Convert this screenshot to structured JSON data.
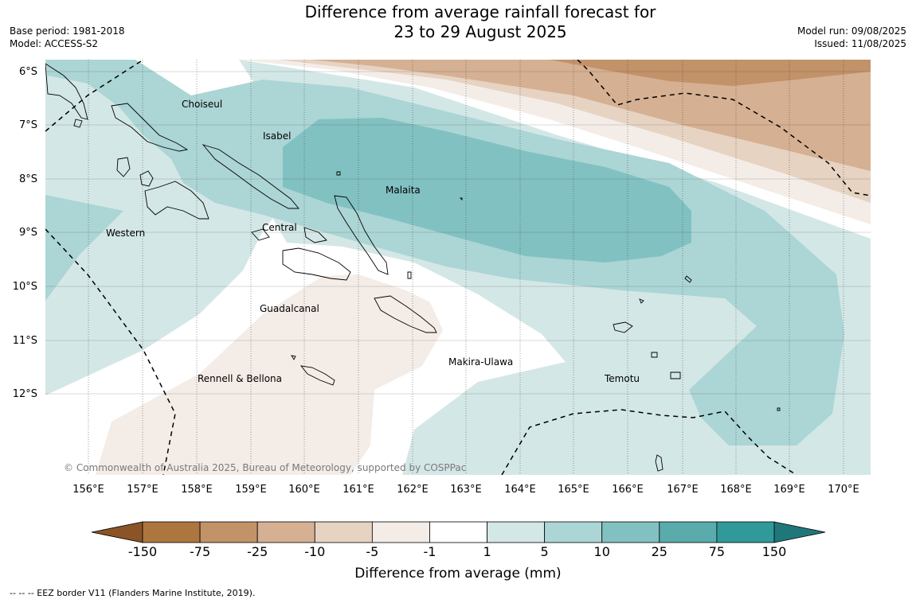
{
  "header": {
    "title_line1": "Difference from average rainfall forecast for",
    "title_line2": "23 to 29 August 2025",
    "base_period": "Base period: 1981-2018",
    "model": "Model: ACCESS-S2",
    "model_run": "Model run: 09/08/2025",
    "issued": "Issued: 11/08/2025"
  },
  "map": {
    "lat_labels": [
      "6°S",
      "7°S",
      "8°S",
      "9°S",
      "10°S",
      "11°S",
      "12°S"
    ],
    "lon_labels": [
      "156°E",
      "157°E",
      "158°E",
      "159°E",
      "160°E",
      "161°E",
      "162°E",
      "163°E",
      "164°E",
      "165°E",
      "166°E",
      "167°E",
      "168°E",
      "169°E",
      "170°E"
    ],
    "regions": {
      "choiseul": "Choiseul",
      "isabel": "Isabel",
      "malaita": "Malaita",
      "central": "Central",
      "western": "Western",
      "guadalcanal": "Guadalcanal",
      "makira": "Makira-Ulawa",
      "temotu": "Temotu",
      "rennell": "Rennell & Bellona"
    },
    "copyright": "© Commonwealth of Australia 2025, Bureau of Meteorology, supported by COSPPac"
  },
  "colorbar": {
    "title": "Difference from average (mm)",
    "tick_labels": [
      "-150",
      "-75",
      "-25",
      "-10",
      "-5",
      "-1",
      "1",
      "5",
      "10",
      "25",
      "75",
      "150"
    ],
    "colors": [
      "#8a5426",
      "#ad763f",
      "#c29269",
      "#d5b092",
      "#e6d3c2",
      "#f4ece7",
      "#ffffff",
      "#d3e7e6",
      "#acd5d5",
      "#82c1c1",
      "#5aabab",
      "#30999a",
      "#20777a"
    ]
  },
  "footnote": "-- -- -- EEZ border V11 (Flanders Marine Institute, 2019)."
}
